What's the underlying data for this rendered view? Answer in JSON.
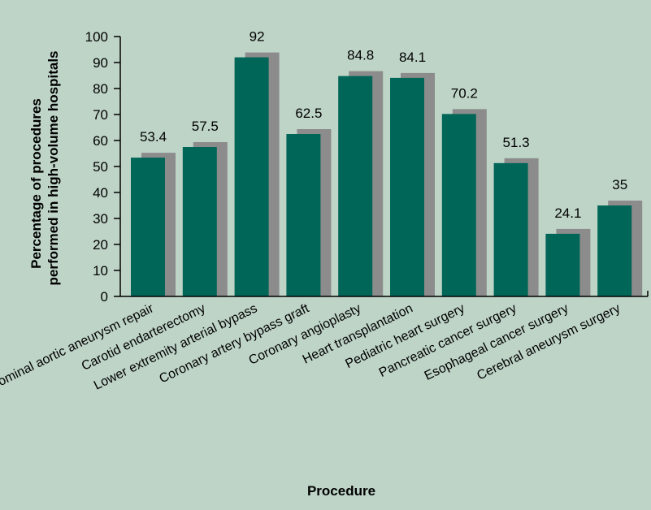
{
  "colors": {
    "background": "#bed4c7",
    "bar": "#006657",
    "bar_shadow": "#8c8c8c",
    "axis": "#000000"
  },
  "chart_data": {
    "type": "bar",
    "xlabel": "Procedure",
    "ylabel_line1": "Percentage of procedures",
    "ylabel_line2": "performed in high-volume hospitals",
    "ylim": [
      0,
      100
    ],
    "yticks": [
      0,
      10,
      20,
      30,
      40,
      50,
      60,
      70,
      80,
      90,
      100
    ],
    "grid": false,
    "categories": [
      "Abdominal aortic aneurysm repair",
      "Carotid endarterectomy",
      "Lower extremity arterial bypass",
      "Coronary artery bypass graft",
      "Coronary angioplasty",
      "Heart transplantation",
      "Pediatric heart surgery",
      "Pancreatic cancer surgery",
      "Esophageal cancer surgery",
      "Cerebral aneurysm surgery"
    ],
    "values": [
      53.4,
      57.5,
      92,
      62.5,
      84.8,
      84.1,
      70.2,
      51.3,
      24.1,
      35
    ],
    "value_labels": [
      "53.4",
      "57.5",
      "92",
      "62.5",
      "84.8",
      "84.1",
      "70.2",
      "51.3",
      "24.1",
      "35"
    ]
  }
}
